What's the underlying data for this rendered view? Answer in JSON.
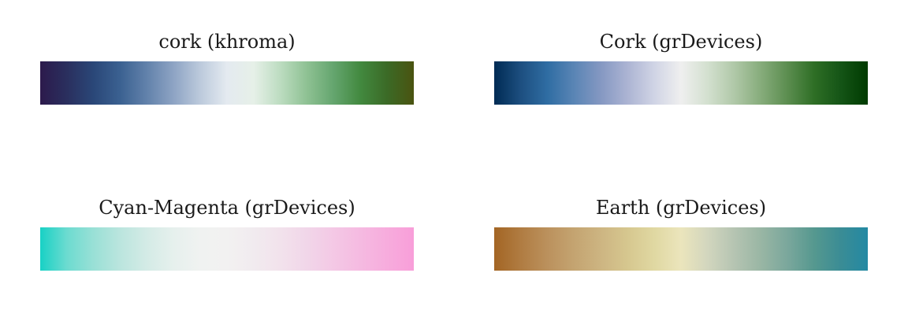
{
  "chart_data": [
    {
      "type": "heatmap",
      "title": "cork (khroma)",
      "colors": [
        "#2c1a4c",
        "#2a2f5e",
        "#2a4778",
        "#3b6191",
        "#6282ab",
        "#8ea4c4",
        "#bccadc",
        "#e4eaf0",
        "#e6f0e8",
        "#bcdcc0",
        "#8ec193",
        "#64a56e",
        "#42893f",
        "#3b6a26",
        "#4a5310"
      ]
    },
    {
      "type": "heatmap",
      "title": "Cork (grDevices)",
      "colors": [
        "#002b54",
        "#1d4f80",
        "#2f6da3",
        "#5a85b5",
        "#8598c2",
        "#acb4d3",
        "#d0d4e5",
        "#efefef",
        "#d3e0cf",
        "#b0c8a8",
        "#86ac7b",
        "#5b8d4f",
        "#2e6e25",
        "#145416",
        "#003b00"
      ]
    },
    {
      "type": "heatmap",
      "title": "Cyan-Magenta (grDevices)",
      "colors": [
        "#18d1c5",
        "#6cdbd0",
        "#99e0d6",
        "#bbe5de",
        "#d4ebe6",
        "#e6f0ed",
        "#f0f2f1",
        "#f2f1f1",
        "#f1ebef",
        "#f2e2ec",
        "#f1d6e9",
        "#f4c8e5",
        "#f5bae1",
        "#f7acdd",
        "#f89ed9"
      ]
    },
    {
      "type": "heatmap",
      "title": "Earth (grDevices)",
      "colors": [
        "#a36524",
        "#b07c42",
        "#bb915d",
        "#c4a471",
        "#cdb582",
        "#d6c78f",
        "#e0d8a2",
        "#ebe5bc",
        "#d2d6be",
        "#b5c4b2",
        "#99b6a4",
        "#7aa79c",
        "#55988f",
        "#3a8c95",
        "#2389a3"
      ]
    }
  ]
}
